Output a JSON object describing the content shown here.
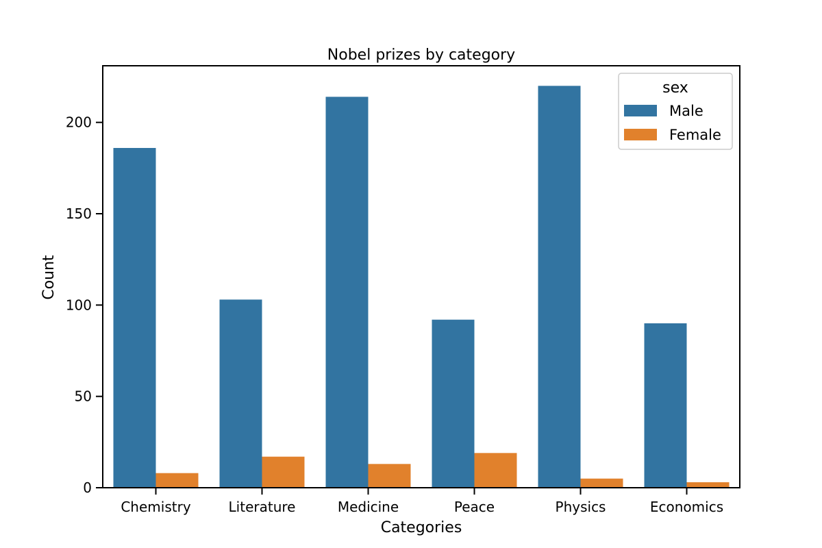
{
  "chart_data": {
    "type": "bar",
    "title": "Nobel prizes by category",
    "xlabel": "Categories",
    "ylabel": "Count",
    "categories": [
      "Chemistry",
      "Literature",
      "Medicine",
      "Peace",
      "Physics",
      "Economics"
    ],
    "series": [
      {
        "name": "Male",
        "color": "#3274a1",
        "values": [
          186,
          103,
          214,
          92,
          220,
          90
        ]
      },
      {
        "name": "Female",
        "color": "#e1812c",
        "values": [
          8,
          17,
          13,
          19,
          5,
          3
        ]
      }
    ],
    "ylim": [
      0,
      231
    ],
    "yticks": [
      0,
      50,
      100,
      150,
      200
    ],
    "grid": false,
    "legend": {
      "title": "sex",
      "placement": "top-right"
    }
  }
}
